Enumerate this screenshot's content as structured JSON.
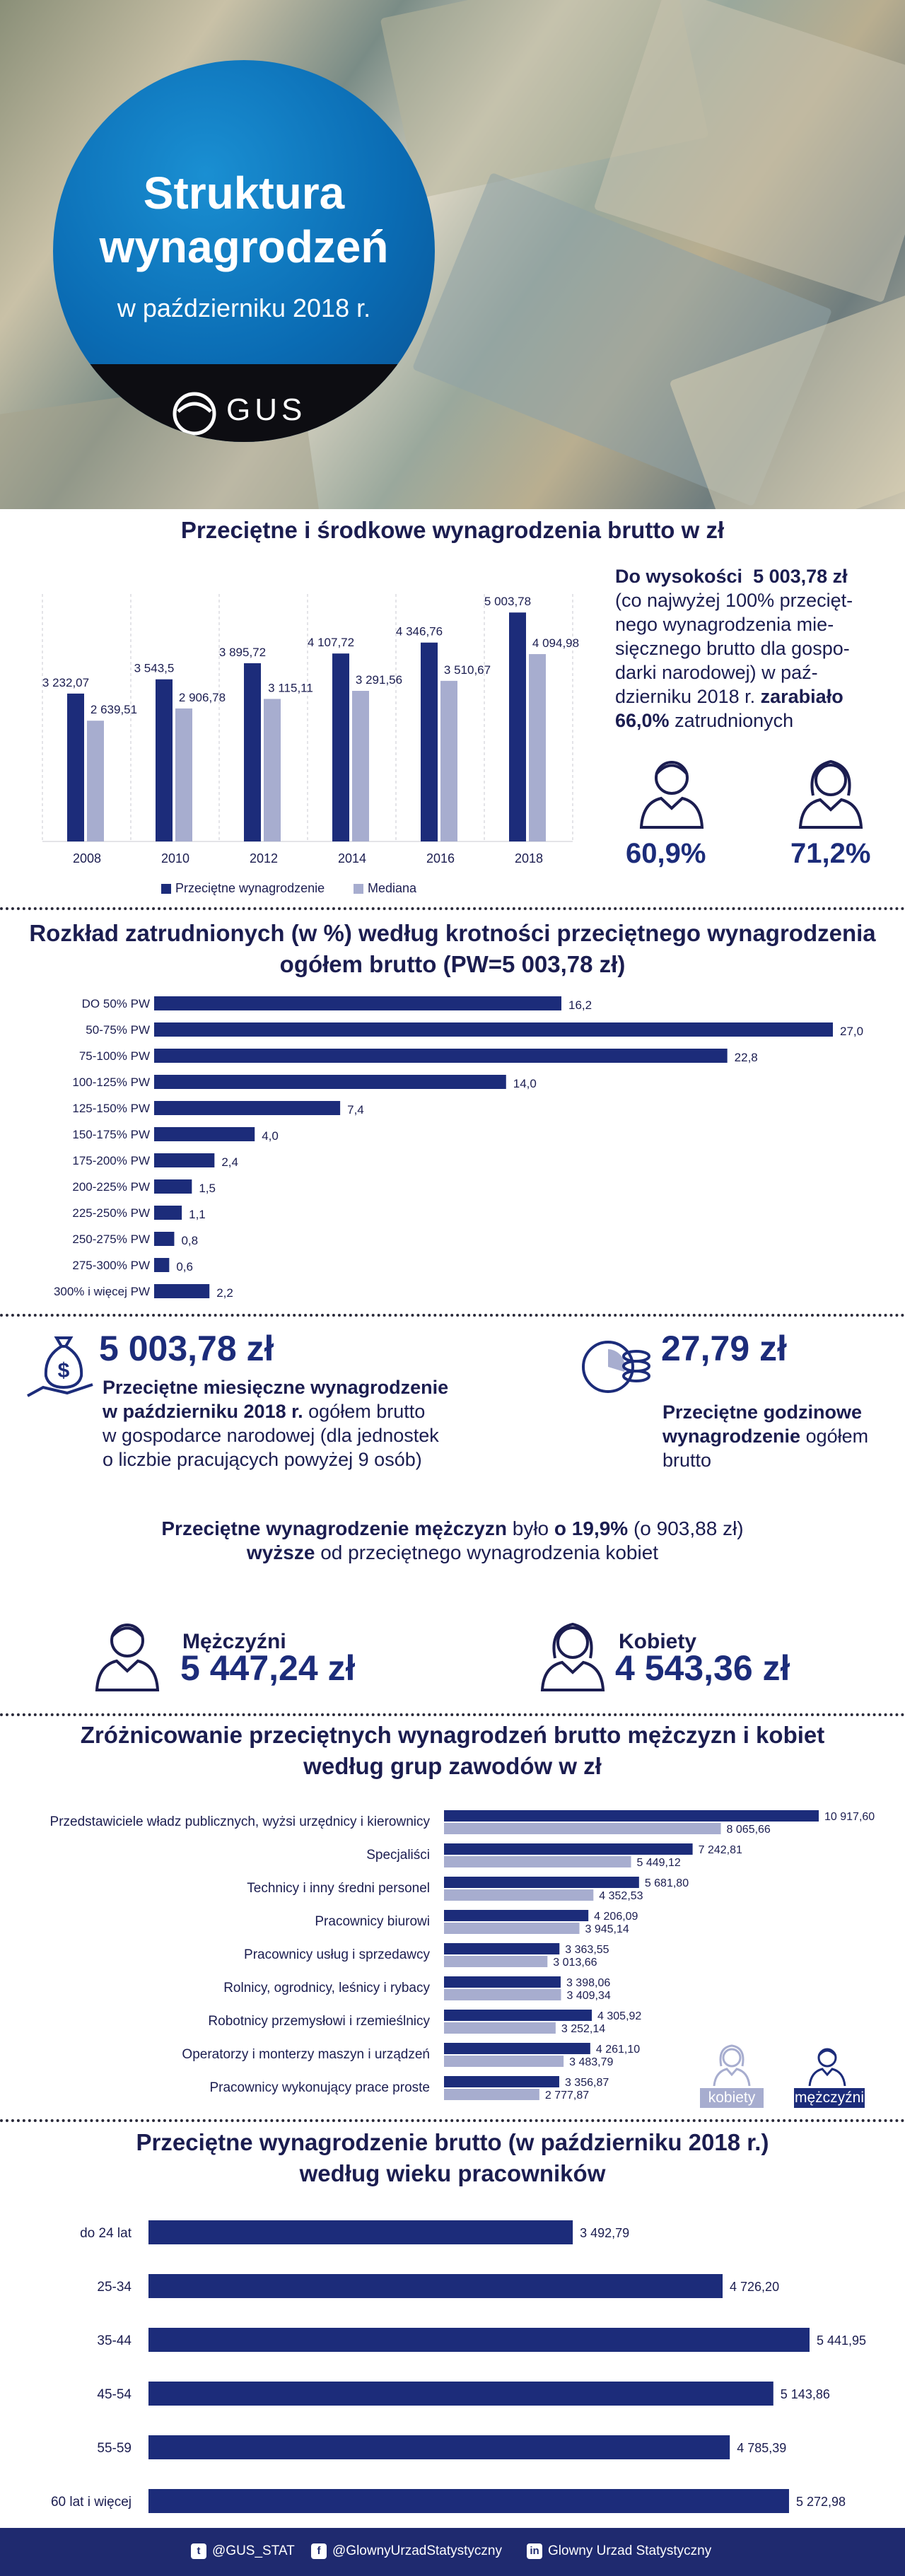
{
  "header": {
    "title_line1": "Struktura",
    "title_line2": "wynagrodzeń",
    "subtitle": "w październiku 2018 r.",
    "logo_text": "GUS"
  },
  "section1": {
    "title": "Przeciętne i środkowe wynagrodzenia brutto w zł",
    "legend_avg": "Przeciętne wynagrodzenie",
    "legend_median": "Mediana",
    "note_prefix": "Do wysokości",
    "note_value": "5 003,78 zł",
    "note_text1": "(co najwyżej 100% przecięt-",
    "note_text2": "nego wynagrodzenia mie-",
    "note_text3": "sięcznego brutto dla gospo-",
    "note_text4": "darki narodowej) w paź-",
    "note_text5a": "dzierniku 2018 r.",
    "note_text5b": "zarabiało",
    "note_text6a": "66,0%",
    "note_text6b": "zatrudnionych",
    "men_pct": "60,9%",
    "women_pct": "71,2%"
  },
  "section2": {
    "title_line1": "Rozkład zatrudnionych (w %) według krotności przeciętnego wynagrodzenia",
    "title_line2": "ogółem brutto (PW=5 003,78 zł)"
  },
  "section3": {
    "avg_value": "5 003,78 zł",
    "avg_desc1": "Przeciętne miesięczne wynagrodzenie",
    "avg_desc2a": "w październiku 2018 r.",
    "avg_desc2b": "ogółem brutto",
    "avg_desc3": "w gospodarce narodowej (dla jednostek",
    "avg_desc4": "o liczbie pracujących powyżej 9 osób)",
    "hour_value": "27,79 zł",
    "hour_desc1": "Przeciętne godzinowe",
    "hour_desc2a": "wynagrodzenie",
    "hour_desc2b": "ogółem",
    "hour_desc3": "brutto",
    "gap_line1a": "Przeciętne wynagrodzenie mężczyzn",
    "gap_line1b": "było",
    "gap_line1c": "o 19,9%",
    "gap_line1d": "(o 903,88 zł)",
    "gap_line2a": "wyższe",
    "gap_line2b": "od przeciętnego wynagrodzenia kobiet",
    "men_label": "Mężczyźni",
    "men_value": "5 447,24 zł",
    "women_label": "Kobiety",
    "women_value": "4 543,36 zł"
  },
  "section4": {
    "title_line1": "Zróżnicowanie przeciętnych wynagrodzeń brutto mężczyzn i kobiet",
    "title_line2": "według grup zawodów w zł",
    "legend_women": "kobiety",
    "legend_men": "mężczyźni"
  },
  "section5": {
    "title_line1": "Przeciętne wynagrodzenie brutto (w październiku 2018 r.)",
    "title_line2": "według wieku pracowników"
  },
  "footer": {
    "twitter": "@GUS_STAT",
    "facebook": "@GlownyUrzadStatystyczny",
    "linkedin": "Glowny Urzad Statystyczny"
  },
  "colors": {
    "navy": "#1c2c7a",
    "light": "#a7adcf",
    "text": "#1b1d50"
  },
  "chart_data": [
    {
      "type": "bar",
      "categories": [
        "2008",
        "2010",
        "2012",
        "2014",
        "2016",
        "2018"
      ],
      "series": [
        {
          "name": "Przeciętne wynagrodzenie",
          "values": [
            3232.07,
            3543.5,
            3895.72,
            4107.72,
            4346.76,
            5003.78
          ],
          "labels": [
            "3 232,07",
            "3 543,5",
            "3 895,72",
            "4 107,72",
            "4 346,76",
            "5 003,78"
          ]
        },
        {
          "name": "Mediana",
          "values": [
            2639.51,
            2906.78,
            3115.11,
            3291.56,
            3510.67,
            4094.98
          ],
          "labels": [
            "2 639,51",
            "2 906,78",
            "3 115,11",
            "3 291,56",
            "3 510,67",
            "4 094,98"
          ]
        }
      ],
      "ylim": [
        0,
        5100
      ]
    },
    {
      "type": "bar",
      "orientation": "horizontal",
      "categories": [
        "DO 50% PW",
        "50-75% PW",
        "75-100% PW",
        "100-125% PW",
        "125-150% PW",
        "150-175% PW",
        "175-200% PW",
        "200-225% PW",
        "225-250% PW",
        "250-275% PW",
        "275-300% PW",
        "300% i więcej PW"
      ],
      "values": [
        16.2,
        27.0,
        22.8,
        14.0,
        7.4,
        4.0,
        2.4,
        1.5,
        1.1,
        0.8,
        0.6,
        2.2
      ],
      "labels": [
        "16,2",
        "27,0",
        "22,8",
        "14,0",
        "7,4",
        "4,0",
        "2,4",
        "1,5",
        "1,1",
        "0,8",
        "0,6",
        "2,2"
      ],
      "xlim": [
        0,
        27.0
      ]
    },
    {
      "type": "bar",
      "orientation": "horizontal",
      "categories": [
        "Przedstawiciele władz publicznych, wyżsi urzędnicy i kierownicy",
        "Specjaliści",
        "Technicy i inny średni personel",
        "Pracownicy biurowi",
        "Pracownicy usług i sprzedawcy",
        "Rolnicy, ogrodnicy, leśnicy i rybacy",
        "Robotnicy przemysłowi i rzemieślnicy",
        "Operatorzy i monterzy maszyn i urządzeń",
        "Pracownicy wykonujący prace proste"
      ],
      "series": [
        {
          "name": "mężczyźni",
          "values": [
            10917.6,
            7242.81,
            5681.8,
            4206.09,
            3363.55,
            3398.06,
            4305.92,
            4261.1,
            3356.87
          ],
          "labels": [
            "10 917,60",
            "7 242,81",
            "5 681,80",
            "4 206,09",
            "3 363,55",
            "3 398,06",
            "4 305,92",
            "4 261,10",
            "3 356,87"
          ]
        },
        {
          "name": "kobiety",
          "values": [
            8065.66,
            5449.12,
            4352.53,
            3945.14,
            3013.66,
            3409.34,
            3252.14,
            3483.79,
            2777.87
          ],
          "labels": [
            "8 065,66",
            "5 449,12",
            "4 352,53",
            "3 945,14",
            "3 013,66",
            "3 409,34",
            "3 252,14",
            "3 483,79",
            "2 777,87"
          ]
        }
      ],
      "xlim": [
        0,
        10917.6
      ]
    },
    {
      "type": "bar",
      "orientation": "horizontal",
      "categories": [
        "do 24 lat",
        "25-34",
        "35-44",
        "45-54",
        "55-59",
        "60 lat i więcej"
      ],
      "values": [
        3492.79,
        4726.2,
        5441.95,
        5143.86,
        4785.39,
        5272.98
      ],
      "labels": [
        "3 492,79",
        "4 726,20",
        "5 441,95",
        "5 143,86",
        "4 785,39",
        "5 272,98"
      ],
      "xlim": [
        0,
        5441.95
      ]
    }
  ]
}
